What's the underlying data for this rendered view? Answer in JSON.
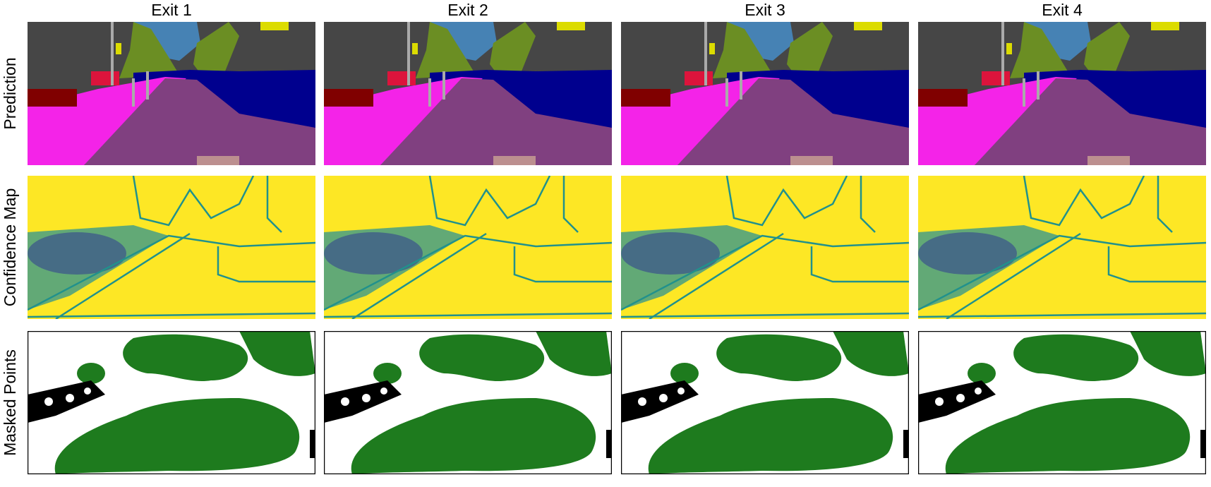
{
  "columns": [
    "Exit 1",
    "Exit 2",
    "Exit 3",
    "Exit 4"
  ],
  "rows": [
    "Prediction",
    "Confidence Map",
    "Masked Points"
  ]
}
